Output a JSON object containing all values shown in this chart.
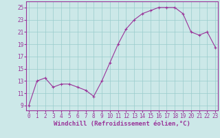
{
  "x": [
    0,
    1,
    2,
    3,
    4,
    5,
    6,
    7,
    8,
    9,
    10,
    11,
    12,
    13,
    14,
    15,
    16,
    17,
    18,
    19,
    20,
    21,
    22,
    23
  ],
  "y": [
    9,
    13,
    13.5,
    12,
    12.5,
    12.5,
    12,
    11.5,
    10.5,
    13,
    16,
    19,
    21.5,
    23,
    24,
    24.5,
    25,
    25,
    25,
    24,
    21,
    20.5,
    21,
    18.5
  ],
  "line_color": "#993399",
  "marker": "+",
  "bg_color": "#cce8e8",
  "grid_color": "#99cccc",
  "xlabel": "Windchill (Refroidissement éolien,°C)",
  "yticks": [
    9,
    11,
    13,
    15,
    17,
    19,
    21,
    23,
    25
  ],
  "xticks": [
    0,
    1,
    2,
    3,
    4,
    5,
    6,
    7,
    8,
    9,
    10,
    11,
    12,
    13,
    14,
    15,
    16,
    17,
    18,
    19,
    20,
    21,
    22,
    23
  ],
  "xlim": [
    -0.3,
    23.3
  ],
  "ylim": [
    8.2,
    26
  ],
  "tick_fontsize": 5.5,
  "xlabel_fontsize": 6.5,
  "line_width": 0.8,
  "marker_size": 3,
  "marker_edge_width": 0.8
}
